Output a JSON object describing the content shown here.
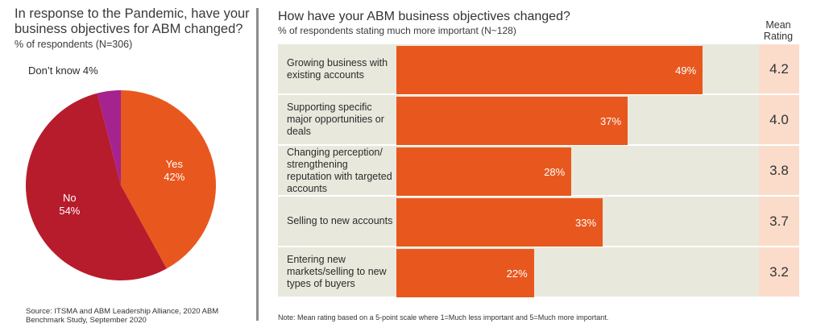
{
  "left": {
    "title": "In response to the Pandemic, have your business objectives for ABM changed?",
    "subtitle": "% of respondents (N=306)",
    "source": "Source: ITSMA and ABM Leadership Alliance, 2020 ABM Benchmark Study, September 2020"
  },
  "right": {
    "title": "How have your ABM business objectives changed?",
    "subtitle": "% of respondents stating much more important (N~128)",
    "mean_header": "Mean Rating",
    "note": "Note: Mean rating based on a 5-point scale where 1=Much less important and 5=Much more important."
  },
  "chart_data": [
    {
      "type": "pie",
      "title": "In response to the Pandemic, have your business objectives for ABM changed?",
      "slices": [
        {
          "label": "Yes",
          "value": 42,
          "value_label": "42%",
          "color": "#e8581e"
        },
        {
          "label": "No",
          "value": 54,
          "value_label": "54%",
          "color": "#b71c2c"
        },
        {
          "label": "Don’t know",
          "value": 4,
          "value_label": "Don’t know 4%",
          "color": "#a4238f"
        }
      ]
    },
    {
      "type": "bar",
      "orientation": "horizontal",
      "title": "How have your ABM business objectives changed?",
      "xlim": [
        0,
        58
      ],
      "bar_color": "#e8581e",
      "mean_cell_color": "#fbdccb",
      "categories": [
        "Growing business with existing accounts",
        "Supporting specific major opportunities or deals",
        "Changing perception/ strengthening reputation with targeted accounts",
        "Selling to new accounts",
        "Entering new markets/selling to new types of buyers"
      ],
      "values": [
        49,
        37,
        28,
        33,
        22
      ],
      "value_labels": [
        "49%",
        "37%",
        "28%",
        "33%",
        "22%"
      ],
      "mean_ratings": [
        "4.2",
        "4.0",
        "3.8",
        "3.7",
        "3.2"
      ]
    }
  ]
}
